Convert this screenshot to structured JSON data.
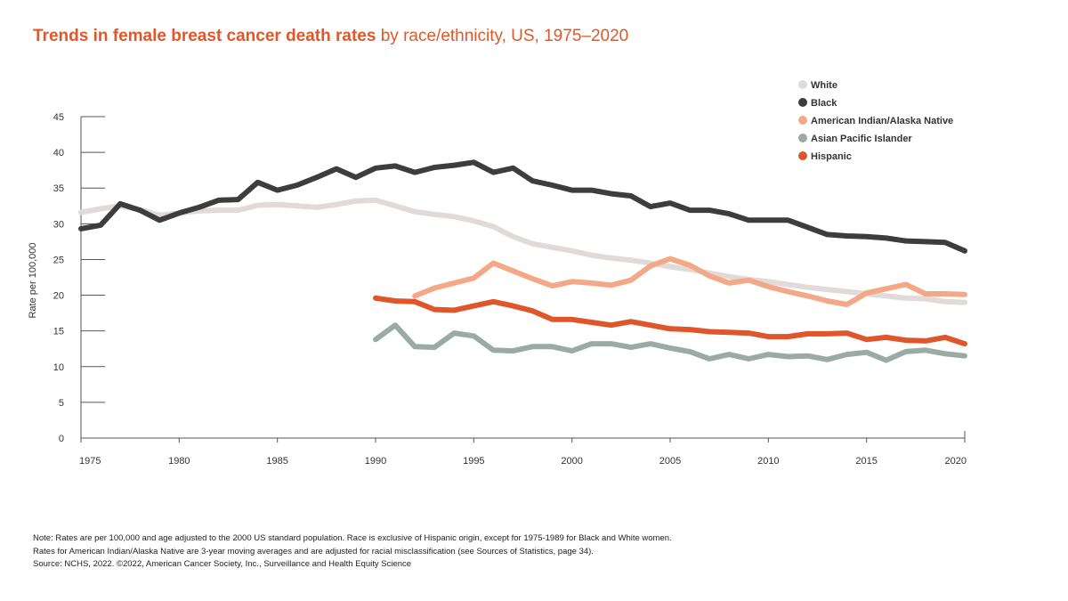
{
  "title": {
    "bold": "Trends in female breast cancer death rates",
    "rest": " by race/ethnicity, US, 1975–2020"
  },
  "notes": [
    "Note: Rates are per 100,000 and age adjusted to the 2000 US standard population. Race is exclusive of Hispanic origin, except for 1975-1989 for Black and White women.",
    "Rates for American Indian/Alaska Native are 3-year moving averages and are adjusted for racial misclassification (see Sources of Statistics, page 34).",
    "Source: NCHS, 2022. ©2022, American Cancer Society, Inc., Surveillance and Health Equity Science"
  ],
  "chart_data": {
    "type": "line",
    "ylabel": "Rate per 100,000",
    "xlabel": "",
    "xlim": [
      1975,
      2020
    ],
    "ylim": [
      0,
      45
    ],
    "x_ticks": [
      1975,
      1980,
      1985,
      1990,
      1995,
      2000,
      2005,
      2010,
      2015,
      2020
    ],
    "y_ticks": [
      0,
      5,
      10,
      15,
      20,
      25,
      30,
      35,
      40,
      45
    ],
    "legend_position": "top-right",
    "series": [
      {
        "name": "White",
        "color": "#e2d9d9",
        "x": [
          1975,
          1976,
          1977,
          1978,
          1979,
          1980,
          1981,
          1982,
          1983,
          1984,
          1985,
          1986,
          1987,
          1988,
          1989,
          1990,
          1991,
          1992,
          1993,
          1994,
          1995,
          1996,
          1997,
          1998,
          1999,
          2000,
          2001,
          2002,
          2003,
          2004,
          2005,
          2006,
          2007,
          2008,
          2009,
          2010,
          2011,
          2012,
          2013,
          2014,
          2015,
          2016,
          2017,
          2018,
          2019,
          2020
        ],
        "values": [
          31.6,
          32.1,
          32.5,
          32.0,
          31.2,
          31.5,
          31.8,
          31.9,
          31.9,
          32.6,
          32.7,
          32.5,
          32.3,
          32.7,
          33.2,
          33.3,
          32.5,
          31.7,
          31.3,
          31.0,
          30.4,
          29.6,
          28.2,
          27.2,
          26.7,
          26.2,
          25.6,
          25.2,
          24.9,
          24.5,
          24.0,
          23.6,
          23.1,
          22.6,
          22.2,
          21.9,
          21.5,
          21.1,
          20.8,
          20.5,
          20.2,
          19.9,
          19.6,
          19.5,
          19.1,
          19.0
        ]
      },
      {
        "name": "Black",
        "color": "#3d3d3d",
        "x": [
          1975,
          1976,
          1977,
          1978,
          1979,
          1980,
          1981,
          1982,
          1983,
          1984,
          1985,
          1986,
          1987,
          1988,
          1989,
          1990,
          1991,
          1992,
          1993,
          1994,
          1995,
          1996,
          1997,
          1998,
          1999,
          2000,
          2001,
          2002,
          2003,
          2004,
          2005,
          2006,
          2007,
          2008,
          2009,
          2010,
          2011,
          2012,
          2013,
          2014,
          2015,
          2016,
          2017,
          2018,
          2019,
          2020
        ],
        "values": [
          29.3,
          29.8,
          32.8,
          31.9,
          30.5,
          31.5,
          32.3,
          33.3,
          33.4,
          35.8,
          34.7,
          35.4,
          36.5,
          37.7,
          36.5,
          37.8,
          38.1,
          37.2,
          37.9,
          38.2,
          38.6,
          37.2,
          37.8,
          36.0,
          35.4,
          34.7,
          34.7,
          34.2,
          33.9,
          32.4,
          32.9,
          31.9,
          31.9,
          31.4,
          30.5,
          30.5,
          30.5,
          29.5,
          28.5,
          28.3,
          28.2,
          28.0,
          27.6,
          27.5,
          27.4,
          26.2
        ]
      },
      {
        "name": "American Indian/Alaska Native",
        "color": "#f3a988",
        "x": [
          1992,
          1993,
          1994,
          1995,
          1996,
          1997,
          1998,
          1999,
          2000,
          2001,
          2002,
          2003,
          2004,
          2005,
          2006,
          2007,
          2008,
          2009,
          2010,
          2011,
          2012,
          2013,
          2014,
          2015,
          2016,
          2017,
          2018,
          2019,
          2020
        ],
        "values": [
          19.9,
          21.0,
          21.7,
          22.4,
          24.5,
          23.4,
          22.3,
          21.3,
          21.9,
          21.7,
          21.4,
          22.1,
          24.1,
          25.1,
          24.2,
          22.7,
          21.7,
          22.1,
          21.2,
          20.5,
          19.9,
          19.2,
          18.7,
          20.3,
          20.9,
          21.5,
          20.2,
          20.2,
          20.1
        ]
      },
      {
        "name": "Asian Pacific Islander",
        "color": "#9aaba5",
        "x": [
          1990,
          1991,
          1992,
          1993,
          1994,
          1995,
          1996,
          1997,
          1998,
          1999,
          2000,
          2001,
          2002,
          2003,
          2004,
          2005,
          2006,
          2007,
          2008,
          2009,
          2010,
          2011,
          2012,
          2013,
          2014,
          2015,
          2016,
          2017,
          2018,
          2019,
          2020
        ],
        "values": [
          13.8,
          15.8,
          12.8,
          12.7,
          14.7,
          14.3,
          12.3,
          12.2,
          12.8,
          12.8,
          12.2,
          13.2,
          13.2,
          12.7,
          13.2,
          12.6,
          12.1,
          11.1,
          11.7,
          11.1,
          11.7,
          11.4,
          11.5,
          11.0,
          11.7,
          12.0,
          10.9,
          12.1,
          12.3,
          11.8,
          11.5
        ]
      },
      {
        "name": "Hispanic",
        "color": "#e0562b",
        "x": [
          1990,
          1991,
          1992,
          1993,
          1994,
          1995,
          1996,
          1997,
          1998,
          1999,
          2000,
          2001,
          2002,
          2003,
          2004,
          2005,
          2006,
          2007,
          2008,
          2009,
          2010,
          2011,
          2012,
          2013,
          2014,
          2015,
          2016,
          2017,
          2018,
          2019,
          2020
        ],
        "values": [
          19.6,
          19.2,
          19.1,
          18.0,
          17.9,
          18.5,
          19.1,
          18.5,
          17.8,
          16.6,
          16.6,
          16.2,
          15.8,
          16.3,
          15.8,
          15.3,
          15.2,
          14.9,
          14.8,
          14.7,
          14.2,
          14.2,
          14.6,
          14.6,
          14.7,
          13.8,
          14.1,
          13.7,
          13.6,
          14.1,
          13.2
        ]
      }
    ]
  }
}
